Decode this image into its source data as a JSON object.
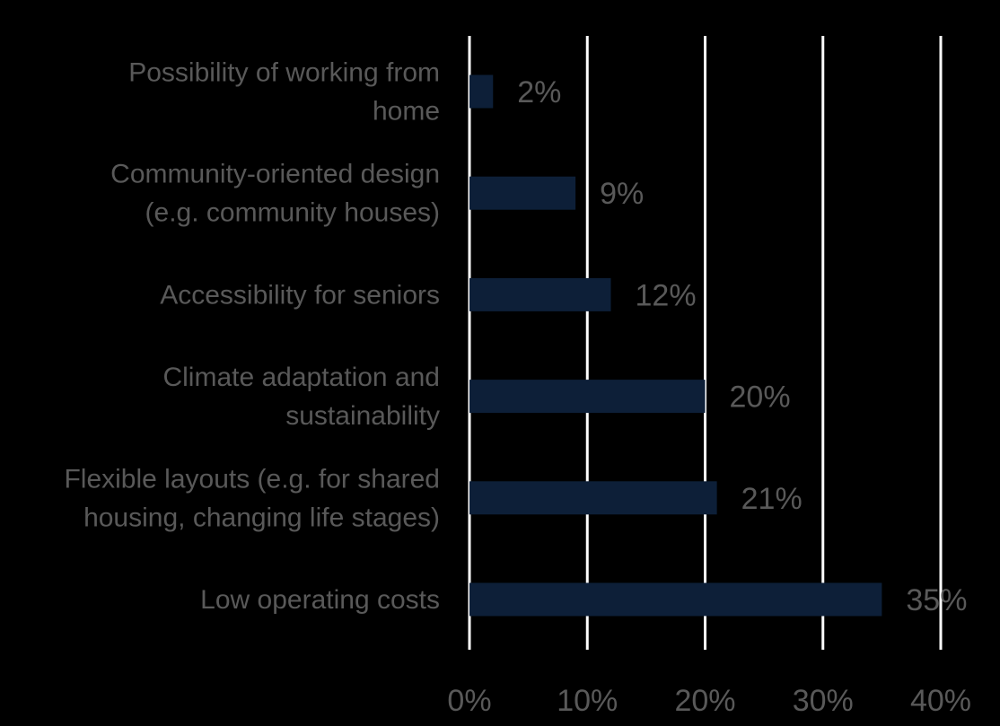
{
  "chart_data": {
    "type": "bar",
    "orientation": "horizontal",
    "title": "",
    "xlabel": "",
    "ylabel": "",
    "categories": [
      [
        "Possibility of working from",
        "home"
      ],
      [
        "Community-oriented design",
        "(e.g. community houses)"
      ],
      [
        "Accessibility for seniors"
      ],
      [
        "Climate adaptation and",
        "sustainability"
      ],
      [
        "Flexible layouts (e.g. for shared",
        "housing, changing life stages)"
      ],
      [
        "Low operating costs"
      ]
    ],
    "values": [
      2,
      9,
      12,
      20,
      21,
      35
    ],
    "value_labels": [
      "2%",
      "9%",
      "12%",
      "20%",
      "21%",
      "35%"
    ],
    "xlim": [
      0,
      40
    ],
    "xticks": [
      0,
      10,
      20,
      30,
      40
    ],
    "xtick_labels": [
      "0%",
      "10%",
      "20%",
      "30%",
      "40%"
    ],
    "grid": true,
    "legend": "none"
  },
  "colors": {
    "background": "#000000",
    "bar": "#0d1f38",
    "gridline": "#ffffff",
    "text": "#595959"
  }
}
